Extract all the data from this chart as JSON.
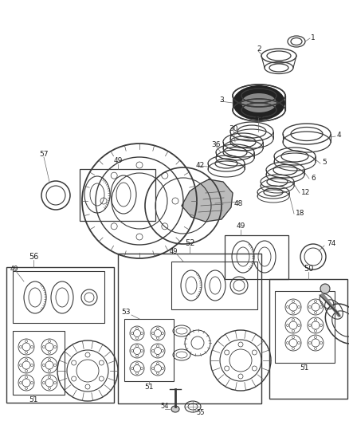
{
  "bg_color": "#ffffff",
  "fig_width": 4.38,
  "fig_height": 5.33,
  "dpi": 100,
  "lc": "#3a3a3a",
  "lw_main": 0.9,
  "lw_thin": 0.6
}
